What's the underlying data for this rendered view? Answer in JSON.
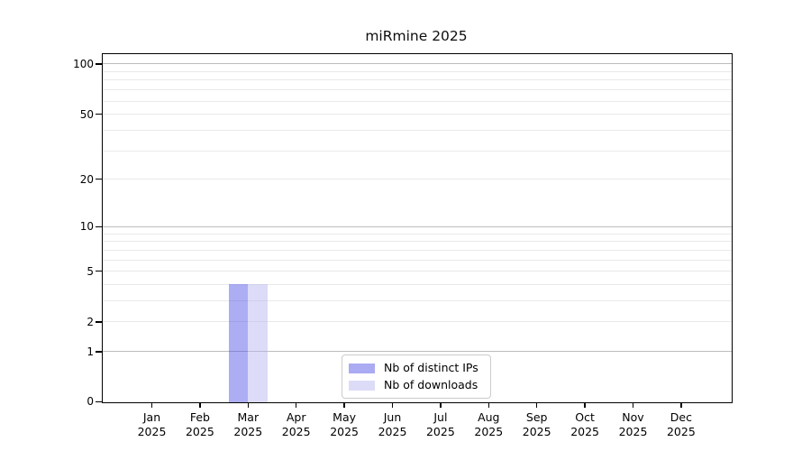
{
  "chart_data": {
    "type": "bar",
    "title": "miRmine 2025",
    "categories": [
      "Jan",
      "Feb",
      "Mar",
      "Apr",
      "May",
      "Jun",
      "Jul",
      "Aug",
      "Sep",
      "Oct",
      "Nov",
      "Dec"
    ],
    "category_year": "2025",
    "series": [
      {
        "name": "Nb of distinct IPs",
        "color": "#aaabf2",
        "fill": "rgba(72,74,228,0.45)",
        "values": [
          0,
          0,
          4,
          0,
          0,
          0,
          0,
          0,
          0,
          0,
          0,
          0
        ]
      },
      {
        "name": "Nb of downloads",
        "color": "#dcdcf8",
        "fill": "rgba(178,178,240,0.45)",
        "values": [
          0,
          0,
          4,
          0,
          0,
          0,
          0,
          0,
          0,
          0,
          0,
          0
        ]
      }
    ],
    "yscale": "log1p",
    "ylim": [
      0,
      111
    ],
    "ytick_values": [
      0,
      1,
      2,
      5,
      10,
      20,
      50,
      100
    ],
    "ytick_labels": [
      "0",
      "1",
      "2",
      "5",
      "10",
      "20",
      "50",
      "100"
    ],
    "major_grid_values": [
      1,
      10,
      100
    ],
    "minor_grid_values": [
      2,
      3,
      4,
      5,
      6,
      7,
      8,
      9,
      20,
      30,
      40,
      50,
      60,
      70,
      80,
      90
    ],
    "grid": true,
    "legend_position": "lower center",
    "axis_color": "#000000",
    "major_grid_color": "#bdbdbd",
    "minor_grid_color": "#e9e9e9"
  }
}
